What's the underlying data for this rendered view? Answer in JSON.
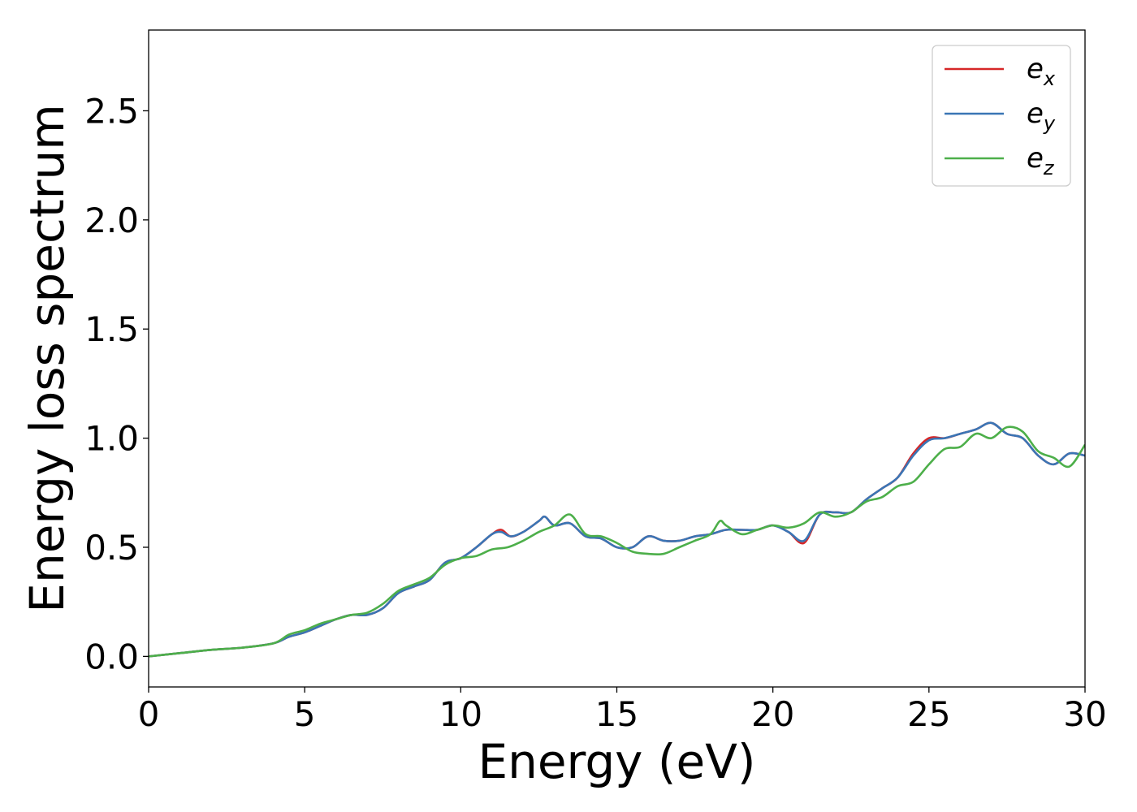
{
  "chart_data": {
    "type": "line",
    "xlabel": "Energy (eV)",
    "ylabel": "Energy loss spectrum",
    "xlim": [
      0,
      30
    ],
    "ylim": [
      -0.14,
      2.87
    ],
    "xticks": [
      0,
      5,
      10,
      15,
      20,
      25,
      30
    ],
    "xtick_labels": [
      "0",
      "5",
      "10",
      "15",
      "20",
      "25",
      "30"
    ],
    "yticks": [
      0.0,
      0.5,
      1.0,
      1.5,
      2.0,
      2.5
    ],
    "ytick_labels": [
      "0.0",
      "0.5",
      "1.0",
      "1.5",
      "2.0",
      "2.5"
    ],
    "grid": false,
    "legend_position": "top-right",
    "series": [
      {
        "name": "e",
        "subscript": "x",
        "color": "#d62728",
        "x": [
          0,
          1,
          2,
          3,
          4,
          4.5,
          5,
          5.5,
          6,
          6.5,
          7,
          7.5,
          8,
          8.5,
          9,
          9.5,
          10,
          10.5,
          11,
          11.3,
          11.6,
          12,
          12.5,
          12.7,
          13,
          13.5,
          14,
          14.5,
          15,
          15.5,
          16,
          16.5,
          17,
          17.5,
          18,
          18.5,
          19,
          19.5,
          20,
          20.5,
          21,
          21.5,
          22,
          22.5,
          23,
          23.5,
          24,
          24.5,
          25,
          25.5,
          26,
          26.5,
          27,
          27.5,
          28,
          28.5,
          29,
          29.5,
          30
        ],
        "y": [
          0,
          0.015,
          0.03,
          0.04,
          0.06,
          0.09,
          0.11,
          0.14,
          0.17,
          0.19,
          0.19,
          0.22,
          0.29,
          0.32,
          0.35,
          0.43,
          0.45,
          0.5,
          0.56,
          0.58,
          0.55,
          0.57,
          0.62,
          0.64,
          0.6,
          0.61,
          0.55,
          0.54,
          0.5,
          0.5,
          0.55,
          0.53,
          0.53,
          0.55,
          0.56,
          0.58,
          0.58,
          0.58,
          0.6,
          0.57,
          0.52,
          0.65,
          0.66,
          0.66,
          0.72,
          0.77,
          0.82,
          0.93,
          1.0,
          1.0,
          1.02,
          1.04,
          1.07,
          1.02,
          1.0,
          0.92,
          0.88,
          0.93,
          0.92
        ]
      },
      {
        "name": "e",
        "subscript": "y",
        "color": "#3a75b5",
        "x": [
          0,
          1,
          2,
          3,
          4,
          4.5,
          5,
          5.5,
          6,
          6.5,
          7,
          7.5,
          8,
          8.5,
          9,
          9.5,
          10,
          10.5,
          11,
          11.3,
          11.6,
          12,
          12.5,
          12.7,
          13,
          13.5,
          14,
          14.5,
          15,
          15.5,
          16,
          16.5,
          17,
          17.5,
          18,
          18.5,
          19,
          19.5,
          20,
          20.5,
          21,
          21.5,
          22,
          22.5,
          23,
          23.5,
          24,
          24.5,
          25,
          25.5,
          26,
          26.5,
          27,
          27.5,
          28,
          28.5,
          29,
          29.5,
          30
        ],
        "y": [
          0,
          0.015,
          0.03,
          0.04,
          0.06,
          0.09,
          0.11,
          0.14,
          0.17,
          0.19,
          0.19,
          0.22,
          0.29,
          0.32,
          0.35,
          0.43,
          0.45,
          0.5,
          0.56,
          0.57,
          0.55,
          0.57,
          0.62,
          0.64,
          0.6,
          0.61,
          0.55,
          0.54,
          0.5,
          0.5,
          0.55,
          0.53,
          0.53,
          0.55,
          0.56,
          0.58,
          0.58,
          0.58,
          0.6,
          0.57,
          0.53,
          0.65,
          0.66,
          0.66,
          0.72,
          0.77,
          0.82,
          0.92,
          0.99,
          1.0,
          1.02,
          1.04,
          1.07,
          1.02,
          1.0,
          0.92,
          0.88,
          0.93,
          0.92
        ]
      },
      {
        "name": "e",
        "subscript": "z",
        "color": "#4daf4a",
        "x": [
          0,
          1,
          2,
          3,
          4,
          4.5,
          5,
          5.5,
          6,
          6.5,
          7,
          7.5,
          8,
          8.5,
          9,
          9.5,
          10,
          10.5,
          11,
          11.5,
          12,
          12.5,
          13,
          13.5,
          14,
          14.5,
          15,
          15.5,
          16,
          16.5,
          17,
          17.5,
          18,
          18.3,
          18.5,
          19,
          19.5,
          20,
          20.5,
          21,
          21.5,
          22,
          22.5,
          23,
          23.5,
          24,
          24.5,
          25,
          25.5,
          26,
          26.5,
          27,
          27.5,
          28,
          28.5,
          29,
          29.5,
          30
        ],
        "y": [
          0,
          0.015,
          0.03,
          0.04,
          0.06,
          0.1,
          0.12,
          0.15,
          0.17,
          0.19,
          0.2,
          0.24,
          0.3,
          0.33,
          0.36,
          0.42,
          0.45,
          0.46,
          0.49,
          0.5,
          0.53,
          0.57,
          0.6,
          0.65,
          0.56,
          0.55,
          0.52,
          0.48,
          0.47,
          0.47,
          0.5,
          0.53,
          0.56,
          0.62,
          0.6,
          0.56,
          0.58,
          0.6,
          0.59,
          0.61,
          0.66,
          0.64,
          0.66,
          0.71,
          0.73,
          0.78,
          0.8,
          0.88,
          0.95,
          0.96,
          1.02,
          1.0,
          1.05,
          1.03,
          0.94,
          0.91,
          0.87,
          0.97
        ]
      }
    ]
  }
}
